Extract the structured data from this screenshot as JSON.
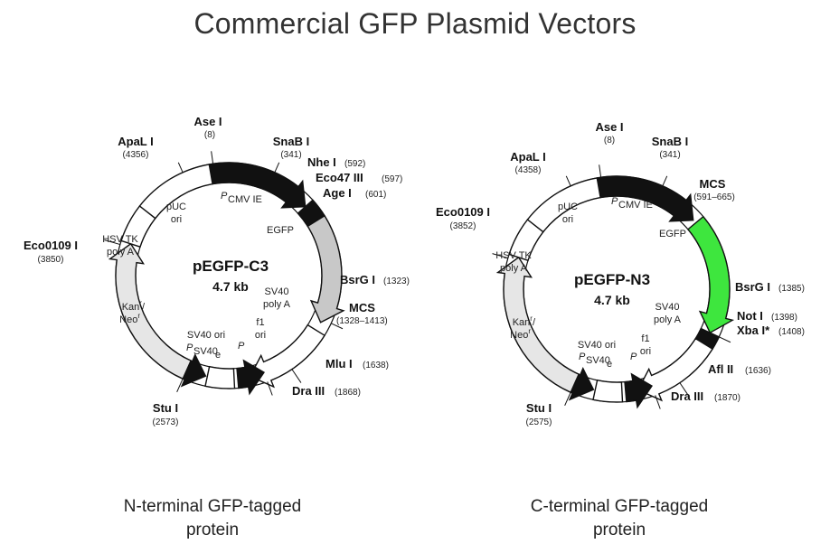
{
  "title": "Commercial GFP Plasmid Vectors",
  "colors": {
    "black": "#111111",
    "gfp_gray": "#c8c8c8",
    "gfp_green": "#3ee63e",
    "kan_gray": "#e6e6e6",
    "white": "#ffffff"
  },
  "plasmids": [
    {
      "name": "pEGFP-C3",
      "size": "4.7 kb",
      "caption_line1": "N-terminal GFP-tagged",
      "caption_line2": "protein",
      "sites": {
        "ase": {
          "enzyme": "Ase I",
          "pos": "(8)"
        },
        "snab": {
          "enzyme": "SnaB I",
          "pos": "(341)"
        },
        "nhe": {
          "enzyme": "Nhe I",
          "pos": "(592)"
        },
        "eco47": {
          "enzyme": "Eco47 III",
          "pos": "(597)"
        },
        "age": {
          "enzyme": "Age I",
          "pos": "(601)"
        },
        "bsrg": {
          "enzyme": "BsrG I",
          "pos": "(1323)"
        },
        "mcs": {
          "enzyme": "MCS",
          "pos": "(1328–1413)"
        },
        "mlu": {
          "enzyme": "Mlu I",
          "pos": "(1638)"
        },
        "dra": {
          "enzyme": "Dra III",
          "pos": "(1868)"
        },
        "stu": {
          "enzyme": "Stu I",
          "pos": "(2573)"
        },
        "eco0109": {
          "enzyme": "Eco0109 I",
          "pos": "(3850)"
        },
        "apal": {
          "enzyme": "ApaL I",
          "pos": "(4356)"
        }
      },
      "features": {
        "puc": "pUC",
        "ori": "ori",
        "pcmv": "P",
        "pcmv_sub": "CMV IE",
        "gfp": "EGFP",
        "sv40pa1": "SV40",
        "sv40pa2": "poly A",
        "f1a": "f1",
        "f1b": "ori",
        "sv40ori": "SV40 ori",
        "psv40": "P",
        "psv40_sub": "SV40",
        "psv40_e": "e",
        "p": "P",
        "kan1": "Kan",
        "kan2": "Neo",
        "r": "r",
        "hsv1": "HSV TK",
        "hsv2": "poly A"
      }
    },
    {
      "name": "pEGFP-N3",
      "size": "4.7 kb",
      "caption_line1": "C-terminal GFP-tagged",
      "caption_line2": "protein",
      "sites": {
        "ase": {
          "enzyme": "Ase I",
          "pos": "(8)"
        },
        "snab": {
          "enzyme": "SnaB I",
          "pos": "(341)"
        },
        "mcs": {
          "enzyme": "MCS",
          "pos": "(591–665)"
        },
        "bsrg": {
          "enzyme": "BsrG I",
          "pos": "(1385)"
        },
        "not": {
          "enzyme": "Not I",
          "pos": "(1398)"
        },
        "xba": {
          "enzyme": "Xba I*",
          "pos": "(1408)"
        },
        "afl": {
          "enzyme": "Afl II",
          "pos": "(1636)"
        },
        "dra": {
          "enzyme": "Dra III",
          "pos": "(1870)"
        },
        "stu": {
          "enzyme": "Stu I",
          "pos": "(2575)"
        },
        "eco0109": {
          "enzyme": "Eco0109 I",
          "pos": "(3852)"
        },
        "apal": {
          "enzyme": "ApaL I",
          "pos": "(4358)"
        }
      },
      "features": {
        "puc": "pUC",
        "ori": "ori",
        "pcmv": "P",
        "pcmv_sub": "CMV IE",
        "gfp": "EGFP",
        "sv40pa1": "SV40",
        "sv40pa2": "poly A",
        "f1a": "f1",
        "f1b": "ori",
        "sv40ori": "SV40 ori",
        "psv40": "P",
        "psv40_sub": "SV40",
        "psv40_e": "e",
        "p": "P",
        "kan1": "Kan",
        "kan2": "Neo",
        "r": "r",
        "hsv1": "HSV TK",
        "hsv2": "poly A"
      }
    }
  ]
}
